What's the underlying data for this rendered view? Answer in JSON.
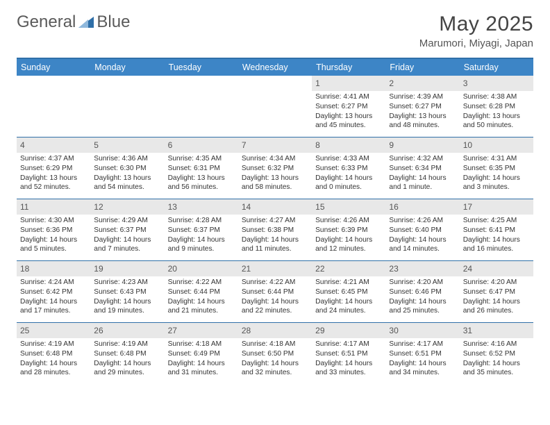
{
  "brand": {
    "word1": "General",
    "word2": "Blue"
  },
  "title": "May 2025",
  "location": "Marumori, Miyagi, Japan",
  "colors": {
    "header_bg": "#3d85c6",
    "accent": "#2f6fa8",
    "daynum_bg": "#e8e8e8",
    "text": "#333333",
    "title_text": "#444444",
    "logo_gray": "#5a5a5a"
  },
  "dow": [
    "Sunday",
    "Monday",
    "Tuesday",
    "Wednesday",
    "Thursday",
    "Friday",
    "Saturday"
  ],
  "weeks": [
    [
      {
        "empty": true
      },
      {
        "empty": true
      },
      {
        "empty": true
      },
      {
        "empty": true
      },
      {
        "day": "1",
        "sunrise": "Sunrise: 4:41 AM",
        "sunset": "Sunset: 6:27 PM",
        "daylight": "Daylight: 13 hours and 45 minutes."
      },
      {
        "day": "2",
        "sunrise": "Sunrise: 4:39 AM",
        "sunset": "Sunset: 6:27 PM",
        "daylight": "Daylight: 13 hours and 48 minutes."
      },
      {
        "day": "3",
        "sunrise": "Sunrise: 4:38 AM",
        "sunset": "Sunset: 6:28 PM",
        "daylight": "Daylight: 13 hours and 50 minutes."
      }
    ],
    [
      {
        "day": "4",
        "sunrise": "Sunrise: 4:37 AM",
        "sunset": "Sunset: 6:29 PM",
        "daylight": "Daylight: 13 hours and 52 minutes."
      },
      {
        "day": "5",
        "sunrise": "Sunrise: 4:36 AM",
        "sunset": "Sunset: 6:30 PM",
        "daylight": "Daylight: 13 hours and 54 minutes."
      },
      {
        "day": "6",
        "sunrise": "Sunrise: 4:35 AM",
        "sunset": "Sunset: 6:31 PM",
        "daylight": "Daylight: 13 hours and 56 minutes."
      },
      {
        "day": "7",
        "sunrise": "Sunrise: 4:34 AM",
        "sunset": "Sunset: 6:32 PM",
        "daylight": "Daylight: 13 hours and 58 minutes."
      },
      {
        "day": "8",
        "sunrise": "Sunrise: 4:33 AM",
        "sunset": "Sunset: 6:33 PM",
        "daylight": "Daylight: 14 hours and 0 minutes."
      },
      {
        "day": "9",
        "sunrise": "Sunrise: 4:32 AM",
        "sunset": "Sunset: 6:34 PM",
        "daylight": "Daylight: 14 hours and 1 minute."
      },
      {
        "day": "10",
        "sunrise": "Sunrise: 4:31 AM",
        "sunset": "Sunset: 6:35 PM",
        "daylight": "Daylight: 14 hours and 3 minutes."
      }
    ],
    [
      {
        "day": "11",
        "sunrise": "Sunrise: 4:30 AM",
        "sunset": "Sunset: 6:36 PM",
        "daylight": "Daylight: 14 hours and 5 minutes."
      },
      {
        "day": "12",
        "sunrise": "Sunrise: 4:29 AM",
        "sunset": "Sunset: 6:37 PM",
        "daylight": "Daylight: 14 hours and 7 minutes."
      },
      {
        "day": "13",
        "sunrise": "Sunrise: 4:28 AM",
        "sunset": "Sunset: 6:37 PM",
        "daylight": "Daylight: 14 hours and 9 minutes."
      },
      {
        "day": "14",
        "sunrise": "Sunrise: 4:27 AM",
        "sunset": "Sunset: 6:38 PM",
        "daylight": "Daylight: 14 hours and 11 minutes."
      },
      {
        "day": "15",
        "sunrise": "Sunrise: 4:26 AM",
        "sunset": "Sunset: 6:39 PM",
        "daylight": "Daylight: 14 hours and 12 minutes."
      },
      {
        "day": "16",
        "sunrise": "Sunrise: 4:26 AM",
        "sunset": "Sunset: 6:40 PM",
        "daylight": "Daylight: 14 hours and 14 minutes."
      },
      {
        "day": "17",
        "sunrise": "Sunrise: 4:25 AM",
        "sunset": "Sunset: 6:41 PM",
        "daylight": "Daylight: 14 hours and 16 minutes."
      }
    ],
    [
      {
        "day": "18",
        "sunrise": "Sunrise: 4:24 AM",
        "sunset": "Sunset: 6:42 PM",
        "daylight": "Daylight: 14 hours and 17 minutes."
      },
      {
        "day": "19",
        "sunrise": "Sunrise: 4:23 AM",
        "sunset": "Sunset: 6:43 PM",
        "daylight": "Daylight: 14 hours and 19 minutes."
      },
      {
        "day": "20",
        "sunrise": "Sunrise: 4:22 AM",
        "sunset": "Sunset: 6:44 PM",
        "daylight": "Daylight: 14 hours and 21 minutes."
      },
      {
        "day": "21",
        "sunrise": "Sunrise: 4:22 AM",
        "sunset": "Sunset: 6:44 PM",
        "daylight": "Daylight: 14 hours and 22 minutes."
      },
      {
        "day": "22",
        "sunrise": "Sunrise: 4:21 AM",
        "sunset": "Sunset: 6:45 PM",
        "daylight": "Daylight: 14 hours and 24 minutes."
      },
      {
        "day": "23",
        "sunrise": "Sunrise: 4:20 AM",
        "sunset": "Sunset: 6:46 PM",
        "daylight": "Daylight: 14 hours and 25 minutes."
      },
      {
        "day": "24",
        "sunrise": "Sunrise: 4:20 AM",
        "sunset": "Sunset: 6:47 PM",
        "daylight": "Daylight: 14 hours and 26 minutes."
      }
    ],
    [
      {
        "day": "25",
        "sunrise": "Sunrise: 4:19 AM",
        "sunset": "Sunset: 6:48 PM",
        "daylight": "Daylight: 14 hours and 28 minutes."
      },
      {
        "day": "26",
        "sunrise": "Sunrise: 4:19 AM",
        "sunset": "Sunset: 6:48 PM",
        "daylight": "Daylight: 14 hours and 29 minutes."
      },
      {
        "day": "27",
        "sunrise": "Sunrise: 4:18 AM",
        "sunset": "Sunset: 6:49 PM",
        "daylight": "Daylight: 14 hours and 31 minutes."
      },
      {
        "day": "28",
        "sunrise": "Sunrise: 4:18 AM",
        "sunset": "Sunset: 6:50 PM",
        "daylight": "Daylight: 14 hours and 32 minutes."
      },
      {
        "day": "29",
        "sunrise": "Sunrise: 4:17 AM",
        "sunset": "Sunset: 6:51 PM",
        "daylight": "Daylight: 14 hours and 33 minutes."
      },
      {
        "day": "30",
        "sunrise": "Sunrise: 4:17 AM",
        "sunset": "Sunset: 6:51 PM",
        "daylight": "Daylight: 14 hours and 34 minutes."
      },
      {
        "day": "31",
        "sunrise": "Sunrise: 4:16 AM",
        "sunset": "Sunset: 6:52 PM",
        "daylight": "Daylight: 14 hours and 35 minutes."
      }
    ]
  ]
}
